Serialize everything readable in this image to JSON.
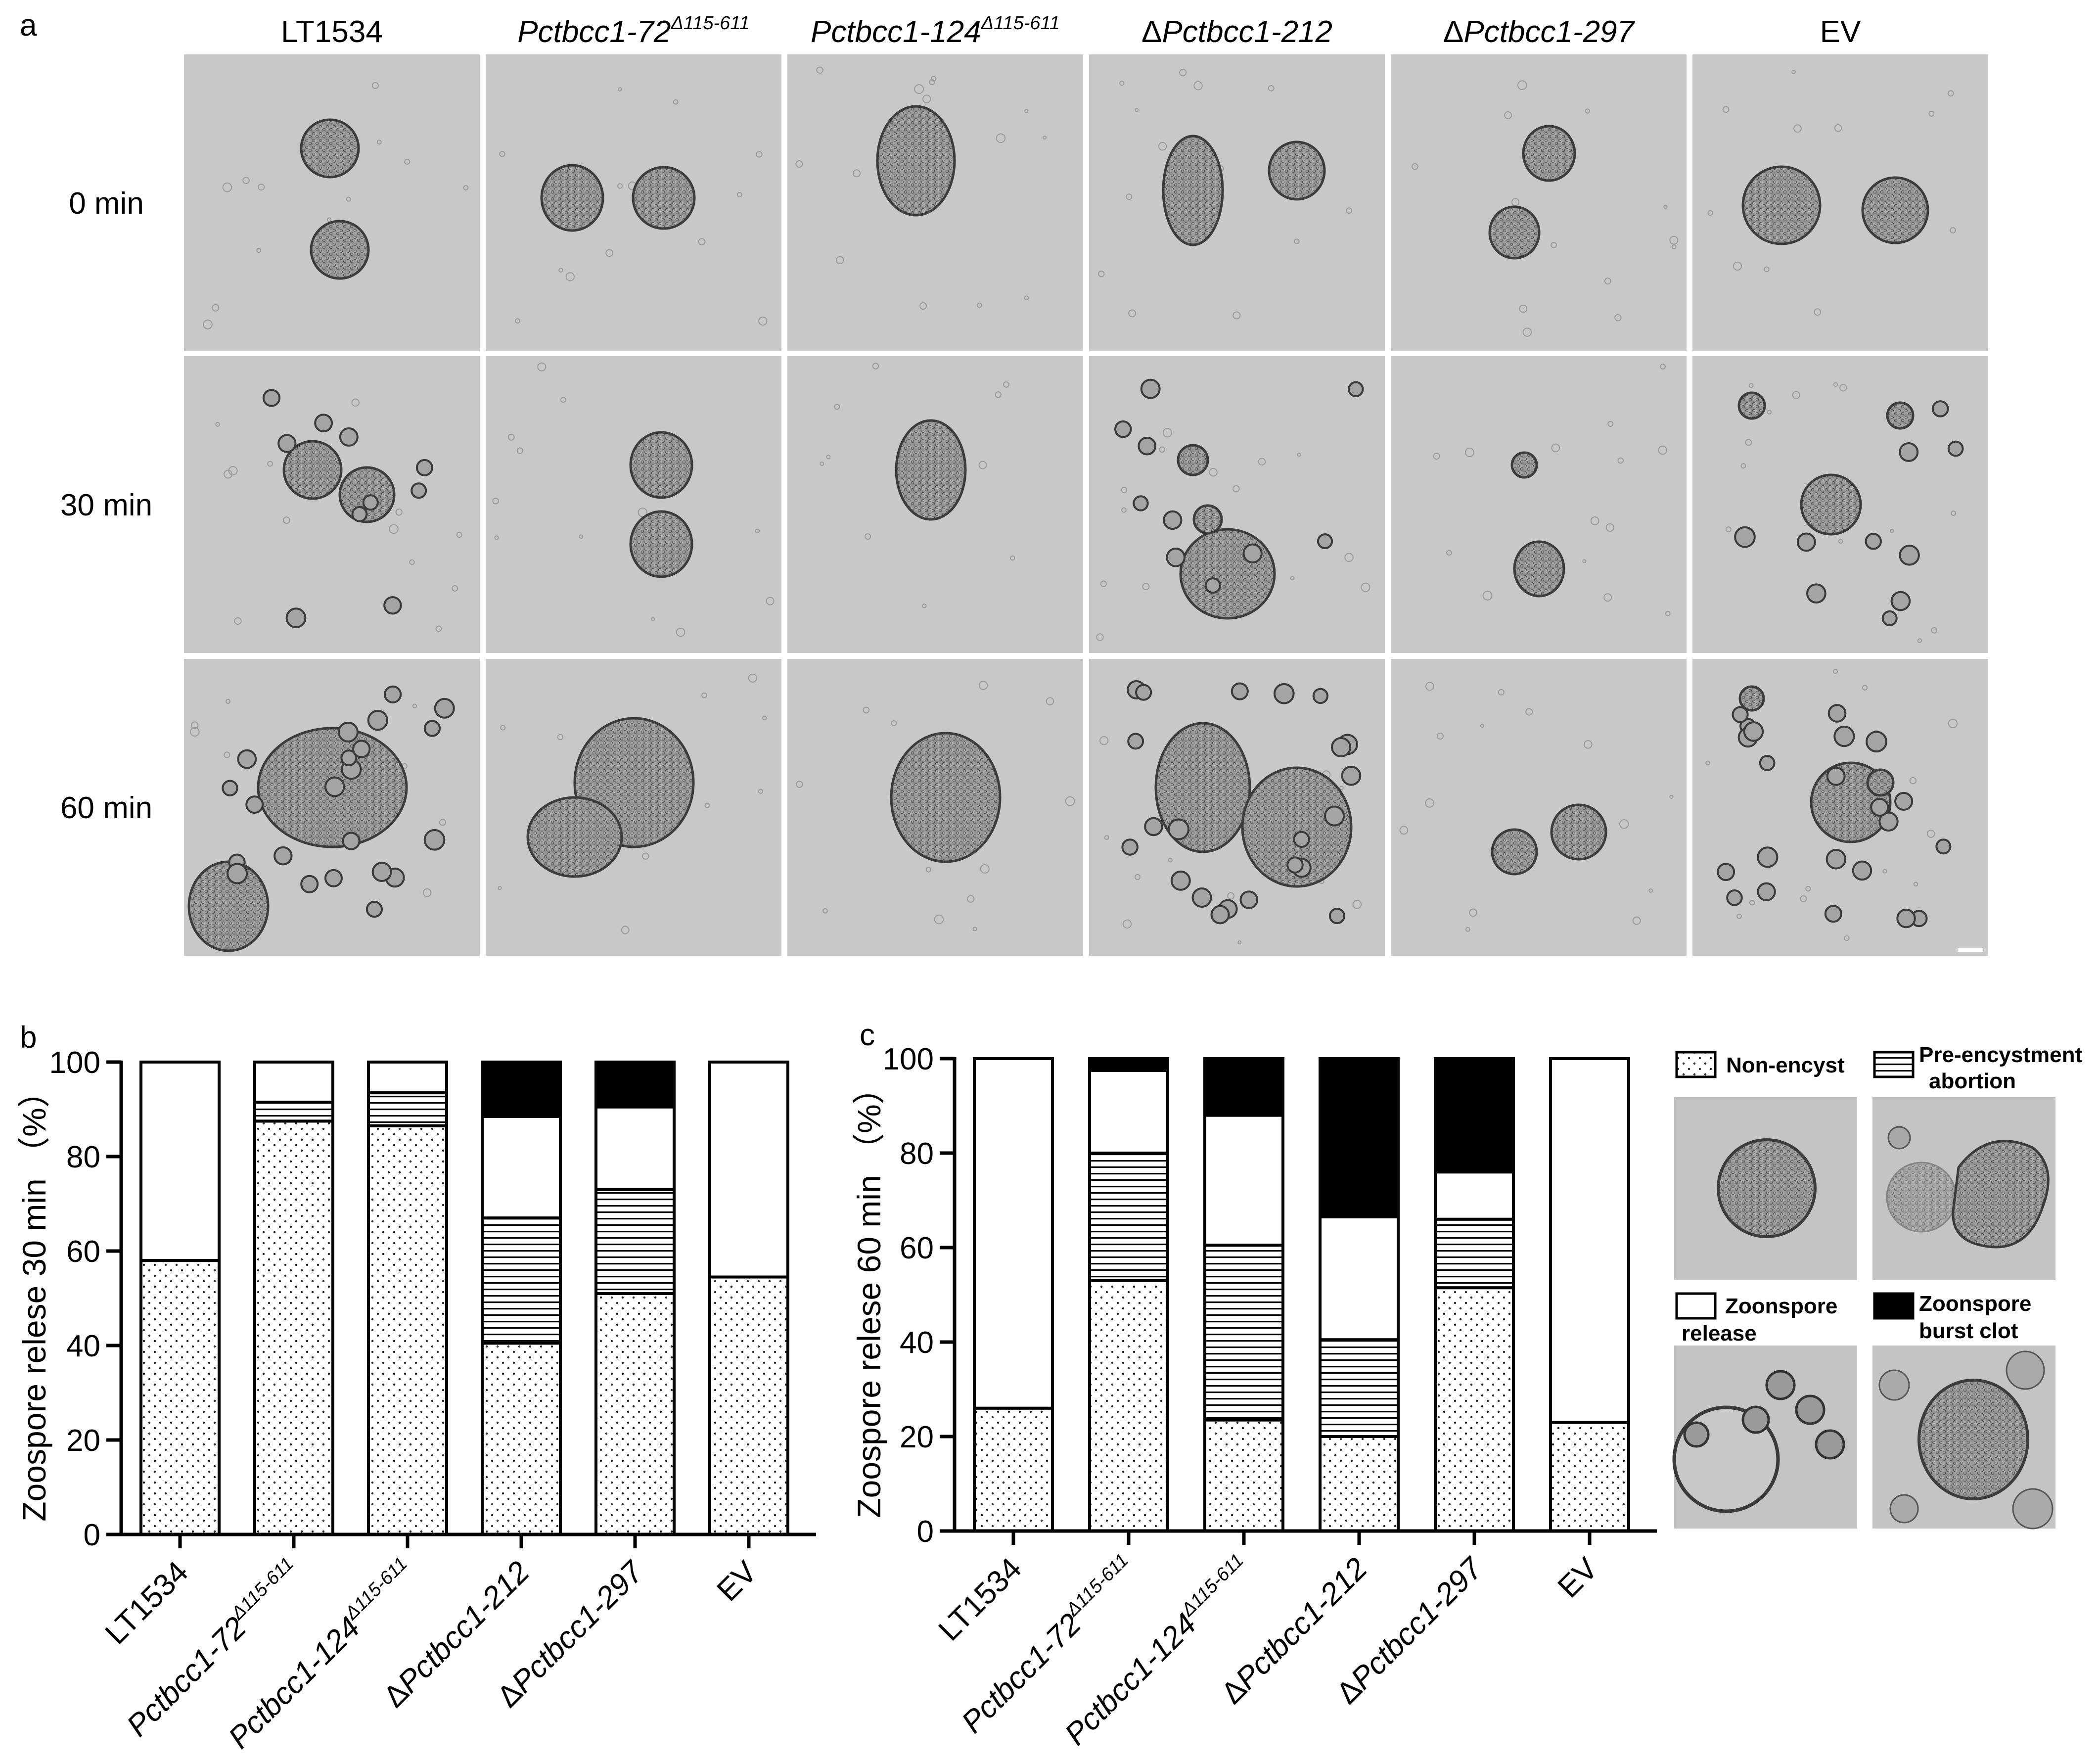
{
  "panels": {
    "a_label": "a",
    "b_label": "b",
    "c_label": "c"
  },
  "micrograph_grid": {
    "columns": [
      {
        "name": "LT1534",
        "italic": false,
        "delta": false,
        "sup": ""
      },
      {
        "name": "Pctbcc1-72",
        "italic": true,
        "delta": false,
        "sup": "Δ115-611"
      },
      {
        "name": "Pctbcc1-124",
        "italic": true,
        "delta": false,
        "sup": "Δ115-611"
      },
      {
        "name": "Pctbcc1-212",
        "italic": true,
        "delta": true,
        "sup": ""
      },
      {
        "name": "Pctbcc1-297",
        "italic": true,
        "delta": true,
        "sup": ""
      },
      {
        "name": "EV",
        "italic": false,
        "delta": false,
        "sup": ""
      }
    ],
    "rows": [
      "0 min",
      "30 min",
      "60 min"
    ]
  },
  "chart_data": [
    {
      "type": "bar",
      "stacked": true,
      "ylabel": "Zoospore relese 30 min （%）",
      "ylim": [
        0,
        100
      ],
      "yticks": [
        "0",
        "20",
        "40",
        "60",
        "80",
        "100"
      ],
      "categories": [
        "LT1534",
        "Pctbcc1-72Δ115-611",
        "Pctbcc1-124Δ115-611",
        "ΔPctbcc1-212",
        "ΔPctbcc1-297",
        "EV"
      ],
      "series": [
        {
          "name": "Non-encyst",
          "values": [
            58,
            87.5,
            86.5,
            40.5,
            51,
            54.5
          ]
        },
        {
          "name": "Pre-encystment abortion",
          "values": [
            0,
            4,
            7,
            26.5,
            22,
            0
          ]
        },
        {
          "name": "Zoonspore release",
          "values": [
            42,
            8.5,
            6.5,
            21.5,
            17.5,
            45.5
          ]
        },
        {
          "name": "Zoonspore burst clot",
          "values": [
            0,
            0,
            0,
            11.5,
            9.5,
            0
          ]
        }
      ]
    },
    {
      "type": "bar",
      "stacked": true,
      "ylabel": "Zoospore relese 60 min （%）",
      "ylim": [
        0,
        100
      ],
      "yticks": [
        "0",
        "20",
        "40",
        "60",
        "80",
        "100"
      ],
      "categories": [
        "LT1534",
        "Pctbcc1-72Δ115-611",
        "Pctbcc1-124Δ115-611",
        "ΔPctbcc1-212",
        "ΔPctbcc1-297",
        "EV"
      ],
      "series": [
        {
          "name": "Non-encyst",
          "values": [
            26,
            53,
            23.5,
            20,
            51.5,
            23
          ]
        },
        {
          "name": "Pre-encystment abortion",
          "values": [
            0,
            27,
            37,
            20.5,
            14.5,
            0
          ]
        },
        {
          "name": "Zoonspore release",
          "values": [
            74,
            17.5,
            27.5,
            26,
            10,
            77
          ]
        },
        {
          "name": "Zoonspore burst clot",
          "values": [
            0,
            2.5,
            12,
            33.5,
            24,
            0
          ]
        }
      ]
    }
  ],
  "legend": {
    "non_encyst": "Non-encyst",
    "pre_encyst_1": "Pre-encystment",
    "pre_encyst_2": "abortion",
    "release_1": "Zoonspore",
    "release_2": "release",
    "burst_1": "Zoonspore",
    "burst_2": "burst clot"
  },
  "colors": {
    "micrograph_bg": "#c8c8c8",
    "cell_outline": "#3c3c3c",
    "bar_fill_solid": "#000000"
  }
}
